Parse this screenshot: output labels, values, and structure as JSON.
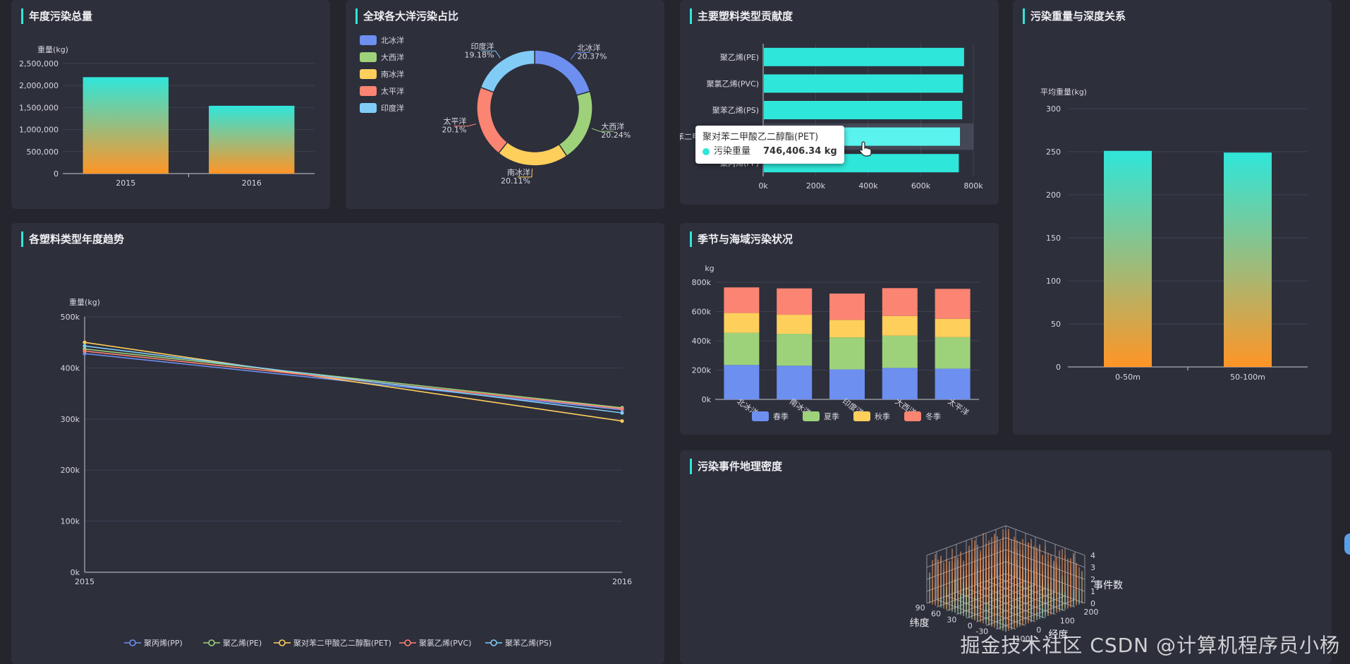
{
  "panels": {
    "annual": "年度污染总量",
    "ocean": "全球各大洋污染占比",
    "types": "主要塑料类型贡献度",
    "depth": "污染重量与深度关系",
    "trend": "各塑料类型年度趋势",
    "season": "季节与海域污染状况",
    "density": "污染事件地理密度"
  },
  "colors": {
    "cyan": "#2fe6da",
    "orange": "#ff9526",
    "blue": "#6d8ff0",
    "green": "#9ed27a",
    "yellow": "#ffcf5c",
    "red": "#fc8472",
    "sky": "#81ccf7"
  },
  "chart_data": [
    {
      "id": "annual",
      "type": "bar",
      "ylabel": "重量(kg)",
      "categories": [
        "2015",
        "2016"
      ],
      "values": [
        2190000,
        1540000
      ],
      "ylim": [
        0,
        2500000
      ],
      "yticks": [
        "0",
        "500,000",
        "1,000,000",
        "1,500,000",
        "2,000,000",
        "2,500,000"
      ]
    },
    {
      "id": "ocean",
      "type": "pie",
      "legend": "top-left",
      "slices": [
        {
          "name": "北冰洋",
          "value": 20.37,
          "label": "20.37%"
        },
        {
          "name": "大西洋",
          "value": 20.24,
          "label": "20.24%"
        },
        {
          "name": "南冰洋",
          "value": 20.11,
          "label": "20.11%"
        },
        {
          "name": "太平洋",
          "value": 20.1,
          "label": "20.1%"
        },
        {
          "name": "印度洋",
          "value": 19.18,
          "label": "19.18%"
        }
      ]
    },
    {
      "id": "types",
      "type": "bar",
      "orientation": "horizontal",
      "categories": [
        "聚乙烯(PE)",
        "聚氯乙烯(PVC)",
        "聚苯乙烯(PS)",
        "聚对苯二甲酸乙二醇酯(PET)",
        "聚丙烯(PP)"
      ],
      "values": [
        762000,
        758000,
        755000,
        746406.34,
        742000
      ],
      "xlim": [
        0,
        800000
      ],
      "xticks": [
        "0k",
        "200k",
        "400k",
        "600k",
        "800k"
      ],
      "tooltip": {
        "title": "聚对苯二甲酸乙二醇酯(PET)",
        "series": "污染重量",
        "value": "746,406.34 kg"
      }
    },
    {
      "id": "depth",
      "type": "bar",
      "ylabel": "平均重量(kg)",
      "categories": [
        "0-50m",
        "50-100m"
      ],
      "values": [
        251,
        249
      ],
      "ylim": [
        0,
        300
      ],
      "yticks": [
        "0",
        "50",
        "100",
        "150",
        "200",
        "250",
        "300"
      ]
    },
    {
      "id": "trend",
      "type": "line",
      "ylabel": "重量(kg)",
      "x": [
        "2015",
        "2016"
      ],
      "ylim": [
        0,
        500000
      ],
      "yticks": [
        "0k",
        "100k",
        "200k",
        "300k",
        "400k",
        "500k"
      ],
      "legend": "bottom",
      "series": [
        {
          "name": "聚丙烯(PP)",
          "values": [
            428000,
            318000
          ]
        },
        {
          "name": "聚乙烯(PE)",
          "values": [
            437000,
            322000
          ]
        },
        {
          "name": "聚对苯二甲酸乙二醇酯(PET)",
          "values": [
            450000,
            296000
          ]
        },
        {
          "name": "聚氯乙烯(PVC)",
          "values": [
            433000,
            320000
          ]
        },
        {
          "name": "聚苯乙烯(PS)",
          "values": [
            443000,
            312000
          ]
        }
      ]
    },
    {
      "id": "season",
      "type": "bar",
      "stacked": true,
      "ylabel": "kg",
      "categories": [
        "北冰洋",
        "南冰洋",
        "印度洋",
        "大西洋",
        "太平洋"
      ],
      "ylim": [
        0,
        800000
      ],
      "yticks": [
        "0k",
        "200k",
        "400k",
        "600k",
        "800k"
      ],
      "legend": "bottom",
      "series": [
        {
          "name": "春季",
          "values": [
            235000,
            230000,
            205000,
            215000,
            210000
          ]
        },
        {
          "name": "夏季",
          "values": [
            220000,
            218000,
            218000,
            220000,
            215000
          ]
        },
        {
          "name": "秋季",
          "values": [
            135000,
            130000,
            120000,
            135000,
            125000
          ]
        },
        {
          "name": "冬季",
          "values": [
            175000,
            180000,
            180000,
            190000,
            205000
          ]
        }
      ]
    },
    {
      "id": "density",
      "type": "bar3d",
      "zlabel": "事件数",
      "ylabel": "纬度",
      "xlabel": "经度",
      "zticks": [
        "0",
        "1",
        "2",
        "3",
        "4"
      ],
      "yticks": [
        "90",
        "60",
        "30",
        "0",
        "-30"
      ],
      "xticks": [
        "200",
        "100",
        "0",
        "-100"
      ]
    }
  ],
  "watermark": "CSDN @计算机程序员小杨",
  "watermark_overlay": "掘金技术社区"
}
